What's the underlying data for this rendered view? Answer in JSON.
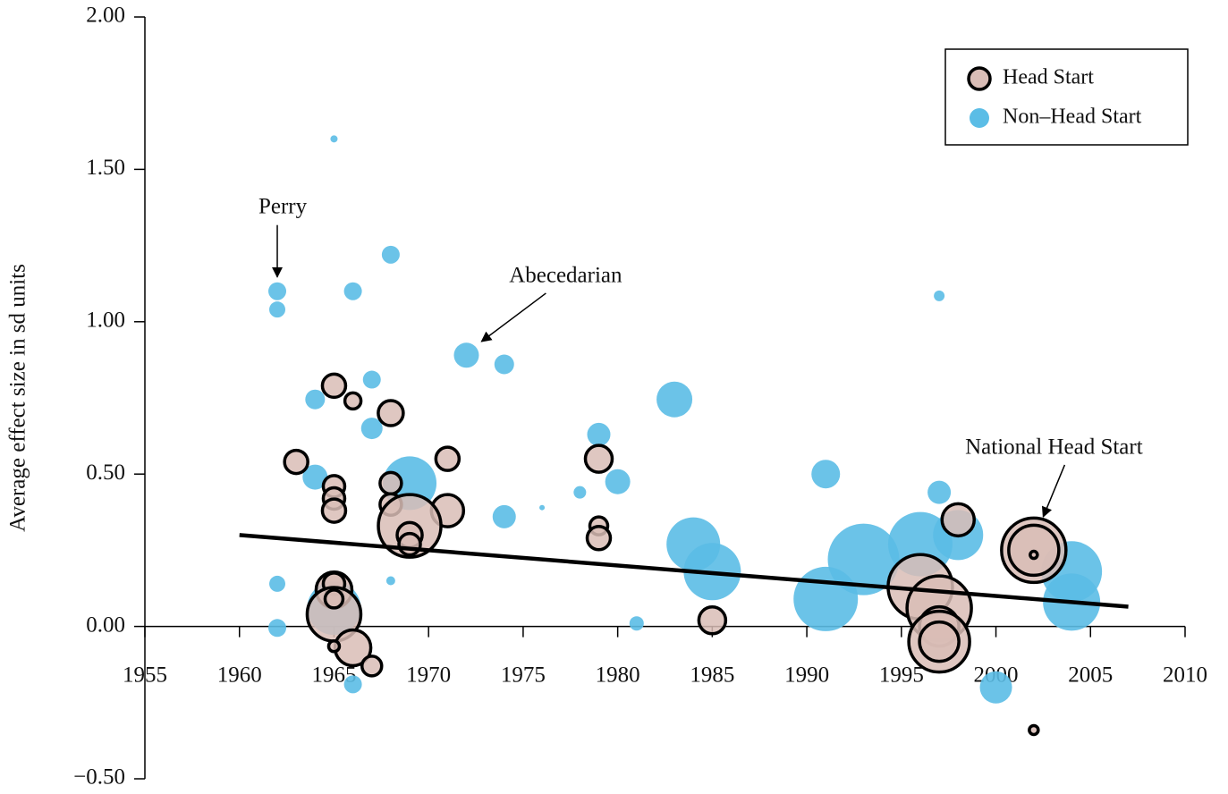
{
  "chart_data": {
    "type": "bubble",
    "y_label": "Average effect size in sd units",
    "xlim": [
      1955,
      2010
    ],
    "xticks": [
      1955,
      1960,
      1965,
      1970,
      1975,
      1980,
      1985,
      1990,
      1995,
      2000,
      2005,
      2010
    ],
    "ylim": [
      -0.5,
      2.0
    ],
    "yticks": [
      {
        "value": -0.5,
        "label": "−0.50"
      },
      {
        "value": 0,
        "label": "0.00"
      },
      {
        "value": 0.5,
        "label": "0.50"
      },
      {
        "value": 1.0,
        "label": "1.00"
      },
      {
        "value": 1.5,
        "label": "1.50"
      },
      {
        "value": 2.0,
        "label": "2.00"
      }
    ],
    "legend": "top-right",
    "series": [
      {
        "name": "Head Start",
        "color": "#d9bdb6",
        "edge_color": "#000000",
        "x": [
          1965,
          1966,
          1968,
          1963,
          1971,
          1979,
          1965,
          1965,
          1965,
          1968,
          1968,
          1971,
          1969,
          1969,
          1969,
          1979,
          1979,
          1998,
          2002,
          2002,
          2002,
          1996,
          1997,
          1997,
          1997,
          1997,
          1965,
          1965,
          1965,
          1965,
          1966,
          1965,
          1967,
          1985,
          2002
        ],
        "y": [
          0.79,
          0.74,
          0.7,
          0.54,
          0.55,
          0.55,
          0.46,
          0.42,
          0.38,
          0.47,
          0.4,
          0.38,
          0.33,
          0.3,
          0.27,
          0.33,
          0.29,
          0.35,
          0.25,
          0.25,
          0.235,
          0.13,
          0.06,
          0.0,
          -0.05,
          -0.05,
          0.12,
          0.14,
          0.04,
          0.09,
          -0.07,
          -0.065,
          -0.13,
          0.02,
          -0.34
        ],
        "sizes": [
          13,
          9,
          14,
          13,
          13,
          15,
          12,
          12,
          13,
          12,
          12,
          18,
          35,
          14,
          12,
          10,
          13,
          18,
          36,
          28,
          4,
          36,
          36,
          22,
          34,
          22,
          20,
          12,
          30,
          10,
          20,
          6,
          11,
          15,
          5
        ]
      },
      {
        "name": "Non–Head Start",
        "color": "#5bbde6",
        "x": [
          1965,
          1962,
          1962,
          1968,
          1966,
          1997,
          1972,
          1974,
          1967,
          1964,
          1983,
          1967,
          1979,
          1969,
          1980,
          1964,
          1978,
          1976,
          1974,
          1991,
          1997,
          1984,
          1985,
          1993,
          1991,
          1996,
          1998,
          2004,
          2004,
          1962,
          1962,
          1968,
          1965,
          1981,
          1966,
          2000
        ],
        "y": [
          1.6,
          1.1,
          1.04,
          1.22,
          1.1,
          1.085,
          0.89,
          0.86,
          0.81,
          0.745,
          0.745,
          0.65,
          0.63,
          0.47,
          0.475,
          0.49,
          0.44,
          0.39,
          0.36,
          0.5,
          0.44,
          0.27,
          0.18,
          0.22,
          0.09,
          0.27,
          0.3,
          0.18,
          0.08,
          0.14,
          -0.005,
          0.15,
          0.06,
          0.01,
          -0.19,
          -0.2
        ],
        "sizes": [
          4,
          10,
          9,
          10,
          10,
          6,
          14,
          11,
          10,
          11,
          20,
          12,
          13,
          30,
          14,
          14,
          7,
          3,
          13,
          16,
          13,
          30,
          32,
          40,
          36,
          36,
          28,
          34,
          32,
          9,
          10,
          5,
          30,
          8,
          10,
          18
        ]
      }
    ],
    "trend": {
      "x": [
        1960,
        2007
      ],
      "y": [
        0.3,
        0.065
      ]
    },
    "annotations": [
      {
        "text": "Perry",
        "x": 1962,
        "y": 1.147
      },
      {
        "text": "Abecedarian",
        "x": 1972.8,
        "y": 0.935
      },
      {
        "text": "National Head Start",
        "x": 2002.5,
        "y": 0.36
      }
    ]
  }
}
